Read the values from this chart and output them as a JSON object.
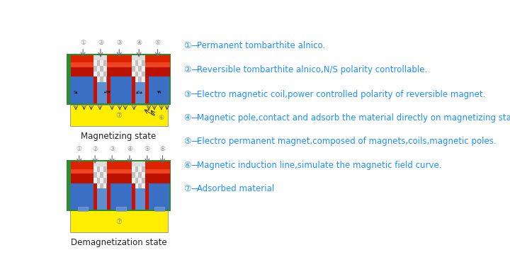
{
  "bg_color": "#ffffff",
  "text_color": "#1e90ff",
  "legend_items": [
    {
      "num": "1",
      "circle": "①",
      "text": "Permanent tombarthite alnico."
    },
    {
      "num": "2",
      "circle": "②",
      "text": "Reversible tombarthite alnico,N/S polarity controllable."
    },
    {
      "num": "3",
      "circle": "③",
      "text": "Electro magnetic coil,power controlled polarity of reversible magnet."
    },
    {
      "num": "4",
      "circle": "④",
      "text": "Magnetic pole,contact and adsorb the material directly on magnetizing state."
    },
    {
      "num": "5",
      "circle": "⑤",
      "text": "Electro permanent magnet,composed of magnets,coils,magnetic poles."
    },
    {
      "num": "6",
      "circle": "⑥",
      "text": "Magnetic induction line,simulate the magnetic field curve."
    },
    {
      "num": "7",
      "circle": "⑦",
      "text": "Adsorbed material"
    }
  ],
  "green_dark": "#2e8b2e",
  "blue_mid": "#3a6fc4",
  "blue_light": "#5b8fd4",
  "red_color": "#cc1100",
  "yellow_color": "#ffee00",
  "label1_state": "Magnetizing state",
  "label2_state": "Demagnetization state",
  "circle_nums_top1": [
    "①",
    "②",
    "③",
    "④",
    "⑤"
  ],
  "circle_nums_top2": [
    "①",
    "②",
    "③",
    "④",
    "⑤",
    "⑥"
  ],
  "circle_6": "⑥",
  "circle_7": "⑦"
}
